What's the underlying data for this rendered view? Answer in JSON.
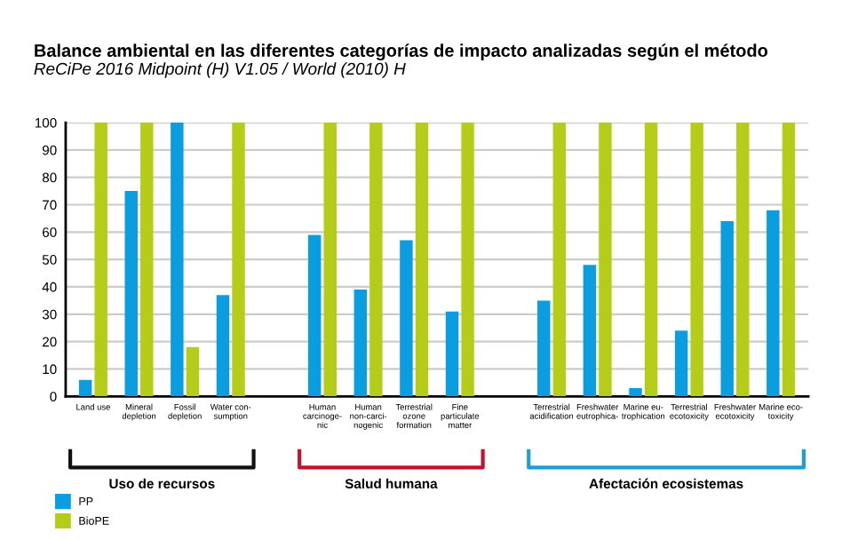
{
  "chart_data": {
    "type": "bar",
    "title": "Balance ambiental en las diferentes categorías de impacto analizadas según el método",
    "subtitle": "ReCiPe 2016 Midpoint (H) V1.05 / World (2010) H",
    "categories": [
      "Land use",
      "Mineral\ndepletion",
      "Fossil\ndepletion",
      "Water con-\nsumption",
      null,
      "Human\ncarcinoge-\nnic",
      "Human\nnon-carci-\nnogenic",
      "Terrestrial\nozone\nformation",
      "Fine\nparticulate\nmatter",
      null,
      "Terrestrial\nacidification",
      "Freshwater\neutrophica-",
      "Marine eu-\ntrophication",
      "Terrestrial\necotoxicity",
      "Freshwater\necotoxicity",
      "Marine eco-\ntoxicity"
    ],
    "series": [
      {
        "name": "PP",
        "color": "#0a9ee0",
        "values": [
          6,
          75,
          100,
          37,
          null,
          59,
          39,
          57,
          31,
          null,
          35,
          48,
          3,
          24,
          64,
          68
        ]
      },
      {
        "name": "BioPE",
        "color": "#b5cc18",
        "values": [
          100,
          100,
          18,
          100,
          null,
          100,
          100,
          100,
          100,
          null,
          100,
          100,
          100,
          100,
          100,
          100
        ]
      }
    ],
    "annotations": [
      "Uso de recursos",
      "Salud humana",
      "Afectación ecosistemas"
    ],
    "ylim": [
      0,
      100
    ],
    "yticks": [
      0,
      10,
      20,
      30,
      40,
      50,
      60,
      70,
      80,
      90,
      100
    ],
    "grid": "y",
    "legend": "bottom left"
  }
}
